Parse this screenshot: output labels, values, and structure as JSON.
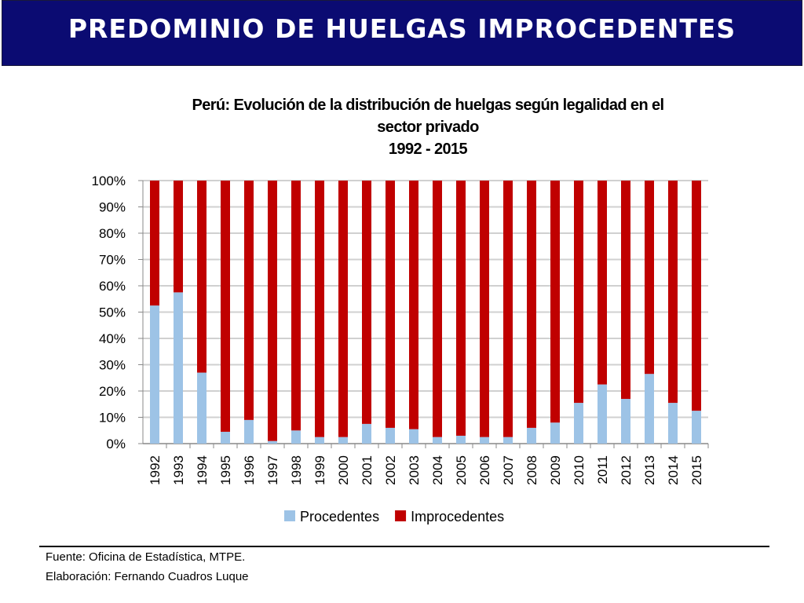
{
  "header": {
    "title": "PREDOMINIO DE HUELGAS IMPROCEDENTES"
  },
  "chart_data": {
    "type": "bar",
    "stacked": "percent",
    "title_lines": [
      "Perú: Evolución de la distribución de huelgas según legalidad en el",
      "sector privado",
      "1992 - 2015"
    ],
    "categories": [
      "1992",
      "1993",
      "1994",
      "1995",
      "1996",
      "1997",
      "1998",
      "1999",
      "2000",
      "2001",
      "2002",
      "2003",
      "2004",
      "2005",
      "2006",
      "2007",
      "2008",
      "2009",
      "2010",
      "2011",
      "2012",
      "2013",
      "2014",
      "2015"
    ],
    "series": [
      {
        "name": "Procedentes",
        "color": "#9dc3e6",
        "values": [
          52.5,
          57.5,
          27,
          4.5,
          9,
          1,
          5,
          2.5,
          2.5,
          7.5,
          6,
          5.5,
          2.5,
          3,
          2.5,
          2.5,
          6,
          8,
          15.5,
          22.5,
          17,
          26.5,
          15.5,
          12.5
        ]
      },
      {
        "name": "Improcedentes",
        "color": "#c00000",
        "values": [
          47.5,
          42.5,
          73,
          95.5,
          91,
          99,
          95,
          97.5,
          97.5,
          92.5,
          94,
          94.5,
          97.5,
          97,
          97.5,
          97.5,
          94,
          92,
          84.5,
          77.5,
          83,
          73.5,
          84.5,
          87.5
        ]
      }
    ],
    "yticks": [
      "0%",
      "10%",
      "20%",
      "30%",
      "40%",
      "50%",
      "60%",
      "70%",
      "80%",
      "90%",
      "100%"
    ],
    "ylim": [
      0,
      100
    ],
    "grid": true,
    "legend": "bottom"
  },
  "footer": {
    "source": "Fuente: Oficina de Estadística, MTPE.",
    "author": "Elaboración: Fernando Cuadros Luque"
  }
}
